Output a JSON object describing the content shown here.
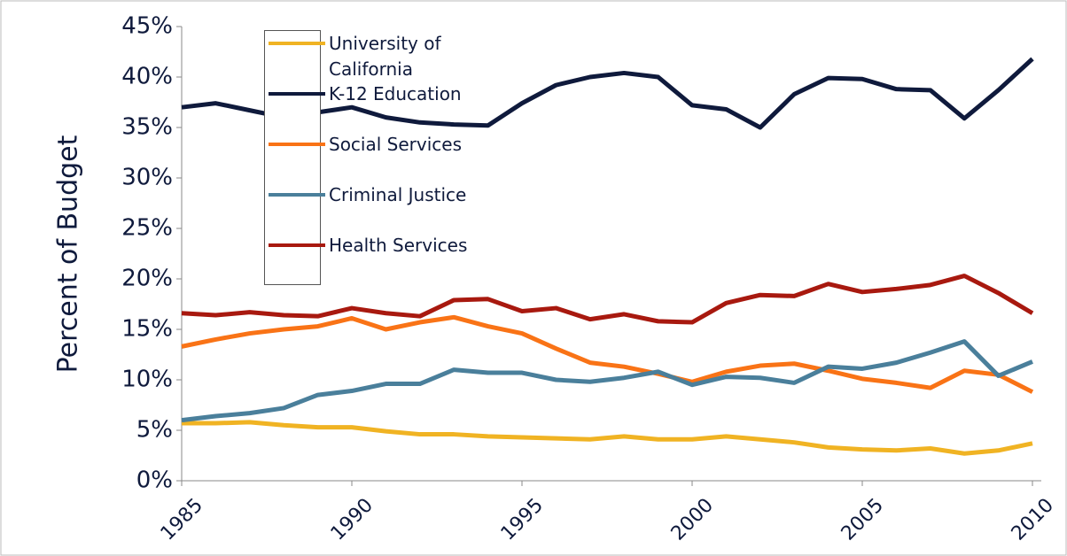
{
  "chart_data": {
    "type": "line",
    "y_label": "Percent of Budget",
    "x": [
      1985,
      1986,
      1987,
      1988,
      1989,
      1990,
      1991,
      1992,
      1993,
      1994,
      1995,
      1996,
      1997,
      1998,
      1999,
      2000,
      2001,
      2002,
      2003,
      2004,
      2005,
      2006,
      2007,
      2008,
      2009,
      2010
    ],
    "xlim": [
      1985,
      2010
    ],
    "xticks": [
      1985,
      1990,
      1995,
      2000,
      2005,
      2010
    ],
    "ylim": [
      0,
      45
    ],
    "yticks": [
      {
        "value": 0,
        "label": "0%"
      },
      {
        "value": 5,
        "label": "5%"
      },
      {
        "value": 10,
        "label": "10%"
      },
      {
        "value": 15,
        "label": "15%"
      },
      {
        "value": 20,
        "label": "20%"
      },
      {
        "value": 25,
        "label": "25%"
      },
      {
        "value": 30,
        "label": "30%"
      },
      {
        "value": 35,
        "label": "35%"
      },
      {
        "value": 40,
        "label": "40%"
      },
      {
        "value": 45,
        "label": "45%"
      }
    ],
    "grid": false,
    "legend": "upper left",
    "series": [
      {
        "name": "University of California",
        "color": "#f0b323",
        "values": [
          5.7,
          5.7,
          5.8,
          5.5,
          5.3,
          5.3,
          4.9,
          4.6,
          4.6,
          4.4,
          4.3,
          4.2,
          4.1,
          4.4,
          4.1,
          4.1,
          4.4,
          4.1,
          3.8,
          3.3,
          3.1,
          3.0,
          3.2,
          2.7,
          3.0,
          3.7
        ]
      },
      {
        "name": "K-12 Education",
        "color": "#0f1a3c",
        "values": [
          37.0,
          37.4,
          36.7,
          36.0,
          36.5,
          37.0,
          36.0,
          35.5,
          35.3,
          35.2,
          37.4,
          39.2,
          40.0,
          40.4,
          40.0,
          37.2,
          36.8,
          35.0,
          38.3,
          39.9,
          39.8,
          38.8,
          38.7,
          35.9,
          38.7,
          41.8
        ]
      },
      {
        "name": "Social Services",
        "color": "#f97316",
        "values": [
          13.3,
          14.0,
          14.6,
          15.0,
          15.3,
          16.1,
          15.0,
          15.7,
          16.2,
          15.3,
          14.6,
          13.1,
          11.7,
          11.3,
          10.6,
          9.8,
          10.8,
          11.4,
          11.6,
          10.9,
          10.1,
          9.7,
          9.2,
          10.9,
          10.5,
          8.8
        ]
      },
      {
        "name": "Criminal Justice",
        "color": "#4a7f9b",
        "values": [
          6.0,
          6.4,
          6.7,
          7.2,
          8.5,
          8.9,
          9.6,
          9.6,
          11.0,
          10.7,
          10.7,
          10.0,
          9.8,
          10.2,
          10.8,
          9.5,
          10.3,
          10.2,
          9.7,
          11.3,
          11.1,
          11.7,
          12.7,
          13.8,
          10.4,
          11.8
        ]
      },
      {
        "name": "Health Services",
        "color": "#a8190f",
        "values": [
          16.6,
          16.4,
          16.7,
          16.4,
          16.3,
          17.1,
          16.6,
          16.3,
          17.9,
          18.0,
          16.8,
          17.1,
          16.0,
          16.5,
          15.8,
          15.7,
          17.6,
          18.4,
          18.3,
          19.5,
          18.7,
          19.0,
          19.4,
          20.3,
          18.6,
          16.6
        ]
      }
    ]
  }
}
